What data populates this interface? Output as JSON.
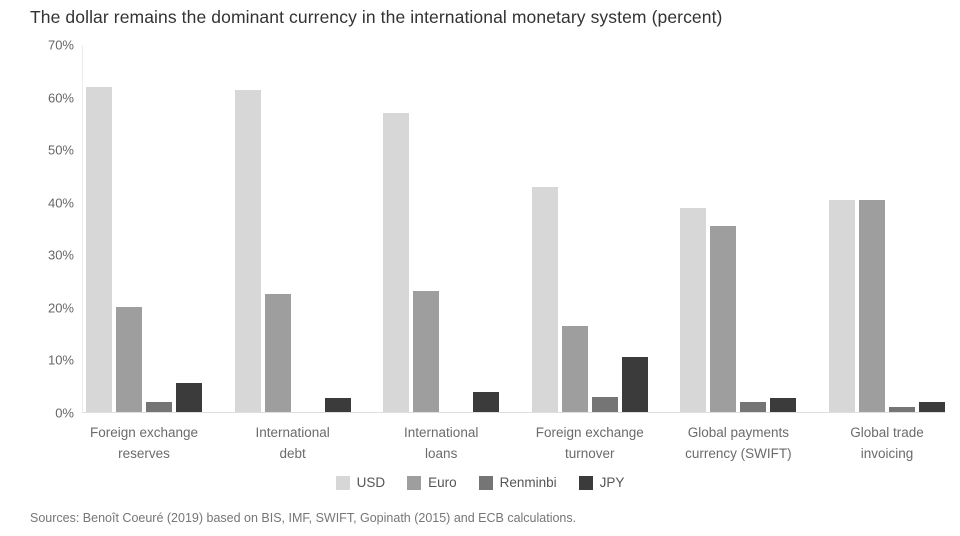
{
  "title": "The dollar remains the dominant currency in the international monetary system (percent)",
  "source": "Sources: Benoît Coeuré (2019) based on BIS, IMF, SWIFT, Gopinath (2015) and ECB calculations.",
  "colors": {
    "usd": "#d7d7d7",
    "euro": "#9e9e9e",
    "renminbi": "#757575",
    "jpy": "#3b3b3b",
    "baseline": "#dedede"
  },
  "chart_data": {
    "type": "bar",
    "title": "The dollar remains the dominant currency in the international monetary system (percent)",
    "xlabel": "",
    "ylabel": "",
    "ylim": [
      0,
      70
    ],
    "yticks": [
      {
        "value": 0,
        "label": "0%"
      },
      {
        "value": 10,
        "label": "10%"
      },
      {
        "value": 20,
        "label": "20%"
      },
      {
        "value": 30,
        "label": "30%"
      },
      {
        "value": 40,
        "label": "40%"
      },
      {
        "value": 50,
        "label": "50%"
      },
      {
        "value": 60,
        "label": "60%"
      },
      {
        "value": 70,
        "label": "70%"
      }
    ],
    "grid": false,
    "legend_position": "bottom",
    "categories": [
      "Foreign exchange\nreserves",
      "International\ndebt",
      "International\nloans",
      "Foreign exchange\nturnover",
      "Global payments\ncurrency (SWIFT)",
      "Global trade\ninvoicing"
    ],
    "series": [
      {
        "name": "USD",
        "color": "#d7d7d7",
        "values": [
          62,
          61.5,
          57,
          43,
          39,
          40.5
        ]
      },
      {
        "name": "Euro",
        "color": "#9e9e9e",
        "values": [
          20,
          22.5,
          23,
          16.5,
          35.5,
          40.5
        ]
      },
      {
        "name": "Renminbi",
        "color": "#757575",
        "values": [
          2,
          0,
          0,
          2.8,
          2,
          1
        ]
      },
      {
        "name": "JPY",
        "color": "#3b3b3b",
        "values": [
          5.5,
          2.7,
          3.8,
          10.5,
          2.7,
          2
        ]
      }
    ]
  }
}
